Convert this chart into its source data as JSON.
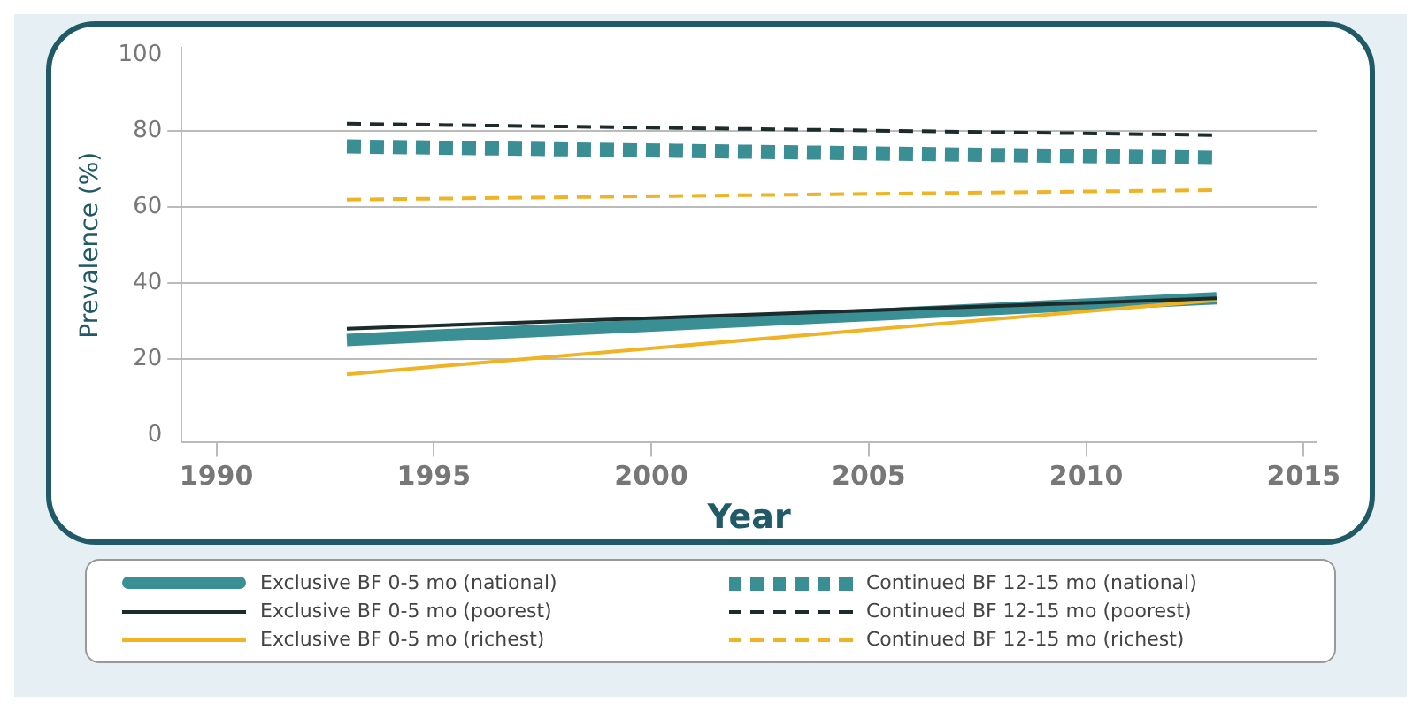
{
  "chart_data": {
    "type": "line",
    "xlabel": "Year",
    "ylabel": "Prevalence (%)",
    "x": [
      1993,
      2013
    ],
    "xlim": [
      1989.2,
      2015.3
    ],
    "xticks": [
      1990,
      1995,
      2000,
      2005,
      2010,
      2015
    ],
    "ylim": [
      -2,
      102
    ],
    "yticks": [
      0,
      20,
      40,
      60,
      80,
      100
    ],
    "grid": "y",
    "legend": "bottom",
    "marker": "none",
    "series": [
      {
        "name": "Exclusive BF 0-5 mo (national)",
        "color": "#3a8f95",
        "values": [
          25,
          36
        ],
        "line_style": "solid"
      },
      {
        "name": "Continued BF 12-15 mo (national)",
        "color": "#3a8f95",
        "values": [
          76,
          73
        ],
        "line_style": "dotted"
      },
      {
        "name": "Exclusive BF 0-5 mo (poorest)",
        "color": "#1c2b2b",
        "values": [
          28,
          36
        ],
        "line_style": "solid"
      },
      {
        "name": "Continued BF 12-15 mo (poorest)",
        "color": "#1c2b2b",
        "values": [
          82,
          79
        ],
        "line_style": "dashed"
      },
      {
        "name": "Exclusive BF 0-5 mo (richest)",
        "color": "#f0b323",
        "values": [
          16,
          35.5
        ],
        "line_style": "solid"
      },
      {
        "name": "Continued BF 12-15 mo (richest)",
        "color": "#f0b323",
        "values": [
          62,
          64.5
        ],
        "line_style": "dashed"
      }
    ]
  }
}
